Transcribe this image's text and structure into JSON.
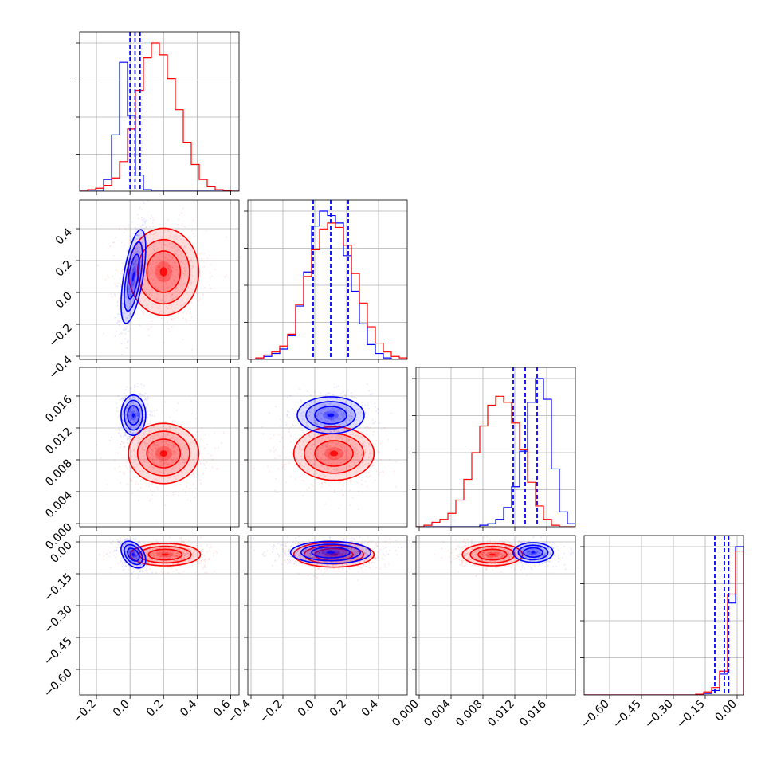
{
  "chart_data": {
    "type": "corner",
    "series": [
      {
        "name": "",
        "color": "#0000ff"
      },
      {
        "name": "",
        "color": "#ff0000"
      }
    ],
    "grid": true,
    "parameters": [
      {
        "range": [
          -0.3,
          0.65
        ],
        "ticks": [
          -0.2,
          0.0,
          0.2,
          0.4,
          0.6
        ],
        "tick_labels": [
          "−0.2",
          "0.0",
          "0.2",
          "0.4",
          "0.6"
        ],
        "quantile_lines": [
          0.0,
          0.03,
          0.06
        ],
        "hist_scale": 1.0,
        "red_hist": [
          0.0,
          0.01,
          0.02,
          0.04,
          0.09,
          0.2,
          0.42,
          0.68,
          0.9,
          1.0,
          0.92,
          0.76,
          0.55,
          0.33,
          0.18,
          0.08,
          0.03,
          0.01,
          0.005,
          0.0
        ],
        "blue_hist": [
          0.0,
          0.0,
          0.0,
          0.08,
          0.38,
          0.87,
          0.51,
          0.11,
          0.01,
          0.0,
          0.0,
          0.0,
          0.0,
          0.0,
          0.0,
          0.0,
          0.0,
          0.0,
          0.0,
          0.0
        ]
      },
      {
        "range": [
          -0.42,
          0.58
        ],
        "ticks": [
          -0.4,
          -0.2,
          0.0,
          0.2,
          0.4
        ],
        "tick_labels": [
          "−0.4",
          "−0.2",
          "0.0",
          "0.2",
          "0.4"
        ],
        "quantile_lines": [
          -0.01,
          0.1,
          0.21
        ],
        "hist_scale": 1.0,
        "red_hist": [
          0.0,
          0.01,
          0.03,
          0.05,
          0.09,
          0.17,
          0.37,
          0.56,
          0.74,
          0.88,
          0.92,
          0.89,
          0.77,
          0.58,
          0.38,
          0.22,
          0.11,
          0.05,
          0.02,
          0.01
        ],
        "blue_hist": [
          0.0,
          0.01,
          0.02,
          0.04,
          0.07,
          0.16,
          0.36,
          0.59,
          0.9,
          1.0,
          0.97,
          0.92,
          0.7,
          0.46,
          0.24,
          0.1,
          0.04,
          0.01,
          0.0,
          0.0
        ]
      },
      {
        "range": [
          -0.0004,
          0.0196
        ],
        "ticks": [
          0.0,
          0.004,
          0.008,
          0.012,
          0.016
        ],
        "tick_labels": [
          "0.000",
          "0.004",
          "0.008",
          "0.012",
          "0.016"
        ],
        "quantile_lines": [
          0.0118,
          0.0133,
          0.0148
        ],
        "hist_scale": 1.0,
        "red_hist": [
          0.0,
          0.01,
          0.03,
          0.05,
          0.09,
          0.18,
          0.32,
          0.5,
          0.68,
          0.82,
          0.88,
          0.84,
          0.7,
          0.52,
          0.3,
          0.14,
          0.05,
          0.01,
          0.0,
          0.0
        ],
        "blue_hist": [
          0.0,
          0.0,
          0.0,
          0.0,
          0.0,
          0.0,
          0.0,
          0.0,
          0.01,
          0.02,
          0.05,
          0.13,
          0.27,
          0.51,
          0.84,
          1.0,
          0.86,
          0.39,
          0.1,
          0.02
        ]
      },
      {
        "range": [
          -0.72,
          0.03
        ],
        "ticks": [
          -0.6,
          -0.45,
          -0.3,
          -0.15,
          0.0
        ],
        "tick_labels": [
          "−0.60",
          "−0.45",
          "−0.30",
          "−0.15",
          "0.00"
        ],
        "quantile_lines": [
          -0.105,
          -0.06,
          -0.04
        ],
        "hist_scale": 1.0,
        "red_hist": [
          0.0,
          0.0,
          0.0,
          0.0,
          0.0,
          0.0,
          0.0,
          0.0,
          0.0,
          0.0,
          0.0,
          0.0,
          0.0,
          0.0,
          0.005,
          0.02,
          0.05,
          0.16,
          0.68,
          0.97
        ],
        "blue_hist": [
          0.0,
          0.0,
          0.0,
          0.0,
          0.0,
          0.0,
          0.0,
          0.0,
          0.0,
          0.0,
          0.0,
          0.0,
          0.0,
          0.0,
          0.0,
          0.01,
          0.03,
          0.14,
          0.62,
          1.0
        ]
      }
    ],
    "contours": [
      {
        "row": 1,
        "col": 0,
        "red": {
          "center": [
            0.2,
            0.13
          ],
          "sigma": [
            0.1,
            0.13
          ],
          "rho": 0.0
        },
        "blue": {
          "center": [
            0.02,
            0.1
          ],
          "sigma": [
            0.035,
            0.14
          ],
          "rho": 0.6
        }
      },
      {
        "row": 2,
        "col": 0,
        "red": {
          "center": [
            0.2,
            0.0088
          ],
          "sigma": [
            0.1,
            0.0018
          ],
          "rho": 0.0
        },
        "blue": {
          "center": [
            0.02,
            0.0136
          ],
          "sigma": [
            0.035,
            0.0012
          ],
          "rho": 0.0
        }
      },
      {
        "row": 2,
        "col": 1,
        "red": {
          "center": [
            0.12,
            0.0088
          ],
          "sigma": [
            0.12,
            0.0016
          ],
          "rho": 0.0
        },
        "blue": {
          "center": [
            0.1,
            0.0136
          ],
          "sigma": [
            0.1,
            0.0011
          ],
          "rho": 0.0
        }
      },
      {
        "row": 3,
        "col": 0,
        "red": {
          "center": [
            0.21,
            -0.06
          ],
          "sigma": [
            0.1,
            0.025
          ],
          "rho": 0.0
        },
        "blue": {
          "center": [
            0.02,
            -0.06
          ],
          "sigma": [
            0.035,
            0.03
          ],
          "rho": -0.4
        }
      },
      {
        "row": 3,
        "col": 1,
        "red": {
          "center": [
            0.12,
            -0.06
          ],
          "sigma": [
            0.12,
            0.028
          ],
          "rho": 0.0
        },
        "blue": {
          "center": [
            0.1,
            -0.05
          ],
          "sigma": [
            0.12,
            0.025
          ],
          "rho": 0.0
        }
      },
      {
        "row": 3,
        "col": 2,
        "red": {
          "center": [
            0.0092,
            -0.06
          ],
          "sigma": [
            0.0018,
            0.025
          ],
          "rho": 0.0
        },
        "blue": {
          "center": [
            0.0143,
            -0.05
          ],
          "sigma": [
            0.0012,
            0.022
          ],
          "rho": 0.0
        }
      }
    ]
  }
}
